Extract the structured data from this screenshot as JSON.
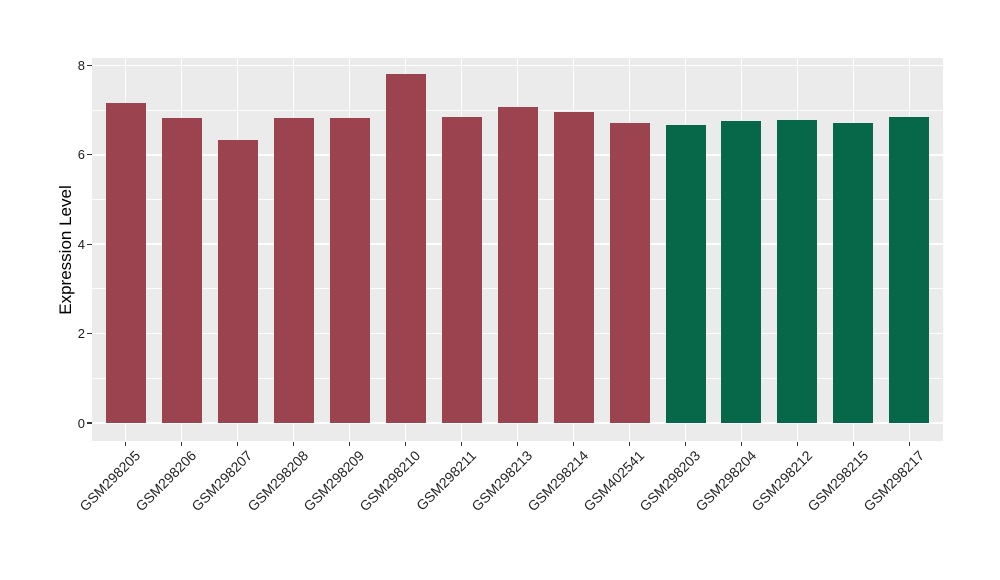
{
  "chart_data": {
    "type": "bar",
    "title": "",
    "xlabel": "",
    "ylabel": "Expression Level",
    "ylim": [
      0,
      8
    ],
    "yticks": [
      0,
      2,
      4,
      6,
      8
    ],
    "yticks_minor": [
      1,
      3,
      5,
      7
    ],
    "grid": true,
    "legend": false,
    "categories": [
      "GSM298205",
      "GSM298206",
      "GSM298207",
      "GSM298208",
      "GSM298209",
      "GSM298210",
      "GSM298211",
      "GSM298213",
      "GSM298214",
      "GSM402541",
      "GSM298203",
      "GSM298204",
      "GSM298212",
      "GSM298215",
      "GSM298217"
    ],
    "values": [
      7.16,
      6.83,
      6.33,
      6.83,
      6.83,
      7.8,
      6.85,
      7.07,
      6.96,
      6.71,
      6.67,
      6.75,
      6.78,
      6.72,
      6.85
    ],
    "bar_colors": [
      "#9C4350",
      "#9C4350",
      "#9C4350",
      "#9C4350",
      "#9C4350",
      "#9C4350",
      "#9C4350",
      "#9C4350",
      "#9C4350",
      "#9C4350",
      "#066849",
      "#066849",
      "#066849",
      "#066849",
      "#066849"
    ]
  },
  "style": {
    "panel_background": "#EBEBEB",
    "grid_color": "#FFFFFF",
    "axis_text_color": "#262626",
    "axis_title_color": "#000000",
    "maroon_bar_color": "#9C4350",
    "green_bar_color": "#066849"
  }
}
